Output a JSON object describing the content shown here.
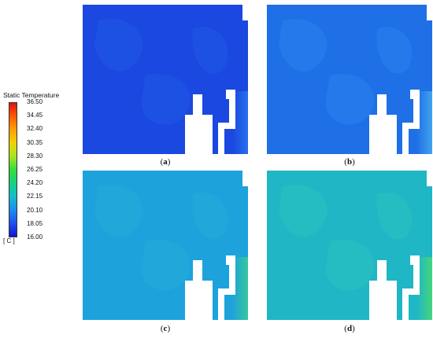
{
  "legend": {
    "title": "Static Temperature",
    "units": "[ C ]",
    "ticks": [
      "36.50",
      "34.45",
      "32.40",
      "30.35",
      "28.30",
      "26.25",
      "24.20",
      "22.15",
      "20.10",
      "18.05",
      "16.00"
    ],
    "range": [
      16.0,
      36.5
    ],
    "colors": [
      "#dc1414",
      "#ff5a00",
      "#ffa000",
      "#f0d200",
      "#a6e61e",
      "#32dc3c",
      "#14d282",
      "#14bec8",
      "#1e8cf0",
      "#1e50f0",
      "#1414d2"
    ]
  },
  "panels": [
    {
      "id": "a",
      "caption": "a",
      "base_color": "#1b48e0",
      "patch_color": "#1f5ae8",
      "wall_color": "#2a78f0"
    },
    {
      "id": "b",
      "caption": "b",
      "base_color": "#1f6fe6",
      "patch_color": "#2a82ee",
      "wall_color": "#4ab0f0"
    },
    {
      "id": "c",
      "caption": "c",
      "base_color": "#1da2dc",
      "patch_color": "#26acd8",
      "wall_color": "#3cd28c"
    },
    {
      "id": "d",
      "caption": "d",
      "base_color": "#1fb6c6",
      "patch_color": "#2ac2be",
      "wall_color": "#4ede6a"
    }
  ]
}
